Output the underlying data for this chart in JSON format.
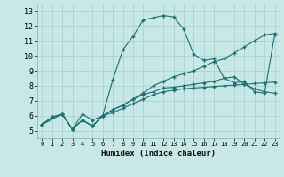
{
  "xlabel": "Humidex (Indice chaleur)",
  "ylabel": "",
  "xlim": [
    -0.5,
    23.5
  ],
  "ylim": [
    4.5,
    13.5
  ],
  "xticks": [
    0,
    1,
    2,
    3,
    4,
    5,
    6,
    7,
    8,
    9,
    10,
    11,
    12,
    13,
    14,
    15,
    16,
    17,
    18,
    19,
    20,
    21,
    22,
    23
  ],
  "yticks": [
    5,
    6,
    7,
    8,
    9,
    10,
    11,
    12,
    13
  ],
  "bg_color": "#c8e8e8",
  "grid_color": "#afd4d4",
  "line_color": "#1a7070",
  "lines": [
    {
      "x": [
        0,
        1,
        2,
        3,
        4,
        5,
        6,
        7,
        8,
        9,
        10,
        11,
        12,
        13,
        14,
        15,
        16,
        17,
        18,
        19,
        20,
        21,
        22,
        23
      ],
      "y": [
        5.4,
        5.9,
        6.1,
        5.1,
        5.7,
        5.3,
        6.0,
        6.2,
        6.5,
        6.8,
        7.1,
        7.4,
        7.6,
        7.7,
        7.8,
        7.85,
        7.9,
        7.95,
        8.0,
        8.05,
        8.1,
        8.15,
        8.2,
        8.25
      ]
    },
    {
      "x": [
        0,
        1,
        2,
        3,
        4,
        5,
        6,
        7,
        8,
        9,
        10,
        11,
        12,
        13,
        14,
        15,
        16,
        17,
        18,
        19,
        20,
        21,
        22,
        23
      ],
      "y": [
        5.4,
        5.9,
        6.1,
        5.1,
        5.7,
        5.3,
        6.0,
        6.4,
        6.7,
        7.1,
        7.4,
        7.6,
        7.85,
        7.9,
        8.0,
        8.1,
        8.2,
        8.3,
        8.5,
        8.6,
        8.1,
        7.8,
        7.6,
        7.5
      ]
    },
    {
      "x": [
        0,
        1,
        2,
        3,
        4,
        5,
        6,
        7,
        8,
        9,
        10,
        11,
        12,
        13,
        14,
        15,
        16,
        17,
        18,
        19,
        20,
        21,
        22,
        23
      ],
      "y": [
        5.4,
        5.9,
        6.1,
        5.1,
        5.7,
        5.3,
        6.0,
        8.4,
        10.4,
        11.3,
        12.4,
        12.55,
        12.7,
        12.6,
        11.8,
        10.1,
        9.7,
        9.8,
        8.5,
        8.2,
        8.3,
        7.6,
        7.5,
        11.4
      ]
    },
    {
      "x": [
        0,
        2,
        3,
        4,
        5,
        6,
        7,
        8,
        9,
        10,
        11,
        12,
        13,
        14,
        15,
        16,
        17,
        18,
        19,
        20,
        21,
        22,
        23
      ],
      "y": [
        5.4,
        6.1,
        5.1,
        6.1,
        5.7,
        6.0,
        6.4,
        6.7,
        7.1,
        7.5,
        8.0,
        8.3,
        8.6,
        8.8,
        9.0,
        9.3,
        9.6,
        9.8,
        10.2,
        10.6,
        11.0,
        11.4,
        11.5
      ]
    }
  ]
}
